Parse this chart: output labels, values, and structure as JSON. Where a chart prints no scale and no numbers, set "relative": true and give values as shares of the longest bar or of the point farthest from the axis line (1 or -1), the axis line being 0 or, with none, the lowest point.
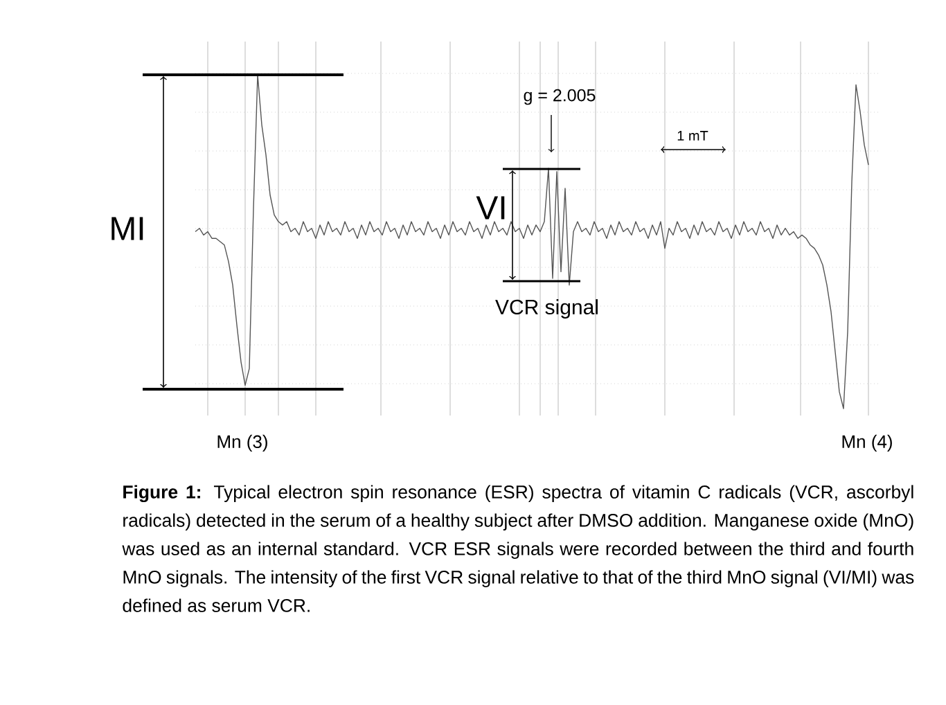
{
  "chart_data": {
    "type": "line",
    "relative": true,
    "grid": true,
    "color": "#555555",
    "categories": [
      null,
      null,
      null,
      null,
      null,
      null,
      null,
      null,
      null,
      null,
      null,
      null,
      null,
      null,
      null,
      null,
      null,
      null,
      null,
      null,
      null,
      null,
      null,
      null,
      null,
      null,
      null,
      null,
      null,
      null,
      null,
      null,
      null,
      null,
      null,
      null,
      null,
      null,
      null,
      null,
      null,
      null,
      null,
      null,
      null,
      null,
      null,
      null,
      null,
      null,
      null,
      null,
      null,
      null,
      null,
      null,
      null,
      null,
      null,
      null,
      null,
      null,
      null,
      null,
      null,
      null,
      null,
      null,
      null,
      null,
      null,
      null,
      null,
      null,
      null,
      null,
      null,
      null,
      null,
      null,
      null,
      null,
      null,
      null,
      null,
      null,
      null,
      null,
      null,
      null,
      null,
      null,
      null,
      null,
      null,
      null,
      null,
      null,
      null,
      null,
      null,
      null,
      null,
      null,
      null,
      null,
      null,
      null,
      null,
      null,
      null,
      null,
      null,
      null,
      null,
      null,
      null,
      null,
      null,
      null,
      null,
      null,
      null,
      null,
      null,
      null,
      null,
      null,
      null,
      null,
      null,
      null,
      null,
      null,
      null,
      null,
      null,
      null,
      null,
      null,
      null,
      null,
      null,
      null,
      null,
      null,
      null,
      null,
      null,
      null,
      null,
      null,
      null,
      null,
      null,
      null,
      null,
      null,
      null,
      null,
      null,
      null,
      null
    ],
    "values": [
      0.53,
      0.54,
      0.52,
      0.53,
      0.51,
      0.51,
      0.5,
      0.49,
      0.44,
      0.37,
      0.25,
      0.14,
      0.07,
      0.12,
      0.6,
      1,
      0.85,
      0.76,
      0.64,
      0.58,
      0.56,
      0.55,
      0.56,
      0.53,
      0.54,
      0.52,
      0.56,
      0.53,
      0.54,
      0.51,
      0.55,
      0.52,
      0.56,
      0.53,
      0.54,
      0.52,
      0.56,
      0.53,
      0.54,
      0.51,
      0.55,
      0.52,
      0.56,
      0.53,
      0.54,
      0.52,
      0.56,
      0.53,
      0.54,
      0.51,
      0.55,
      0.52,
      0.56,
      0.53,
      0.54,
      0.52,
      0.56,
      0.53,
      0.54,
      0.51,
      0.55,
      0.52,
      0.56,
      0.53,
      0.54,
      0.52,
      0.56,
      0.53,
      0.54,
      0.51,
      0.55,
      0.52,
      0.56,
      0.53,
      0.54,
      0.52,
      0.56,
      0.53,
      0.54,
      0.51,
      0.55,
      0.52,
      0.55,
      0.53,
      0.56,
      0.72,
      0.39,
      0.71,
      0.41,
      0.66,
      0.37,
      0.53,
      0.56,
      0.53,
      0.54,
      0.52,
      0.56,
      0.53,
      0.54,
      0.51,
      0.55,
      0.52,
      0.56,
      0.53,
      0.54,
      0.52,
      0.56,
      0.53,
      0.54,
      0.51,
      0.55,
      0.52,
      0.56,
      0.48,
      0.54,
      0.52,
      0.56,
      0.53,
      0.54,
      0.51,
      0.55,
      0.52,
      0.56,
      0.53,
      0.54,
      0.52,
      0.56,
      0.53,
      0.54,
      0.51,
      0.55,
      0.52,
      0.56,
      0.53,
      0.54,
      0.52,
      0.56,
      0.53,
      0.54,
      0.51,
      0.55,
      0.52,
      0.54,
      0.52,
      0.53,
      0.51,
      0.52,
      0.51,
      0.49,
      0.48,
      0.46,
      0.43,
      0.37,
      0.29,
      0.17,
      0.05,
      0,
      0.23,
      0.68,
      0.97,
      0.89,
      0.79,
      0.73
    ],
    "annotations": [
      "MI",
      "VI",
      "VCR signal",
      "g = 2.005",
      "1 mT",
      "Mn (3)",
      "Mn (4)",
      "**Figure 1:** Typical electron spin resonance (ESR) spectra of vitamin C radicals (VCR, ascorbyl radicals) detected in the serum of a healthy subject after DMSO addition. Manganese oxide (MnO) was used as an internal standard. VCR ESR signals were recorded between the third and fourth MnO signals. The intensity of the first VCR signal relative to that of the third MnO signal (VI/MI) was defined as serum VCR."
    ]
  }
}
